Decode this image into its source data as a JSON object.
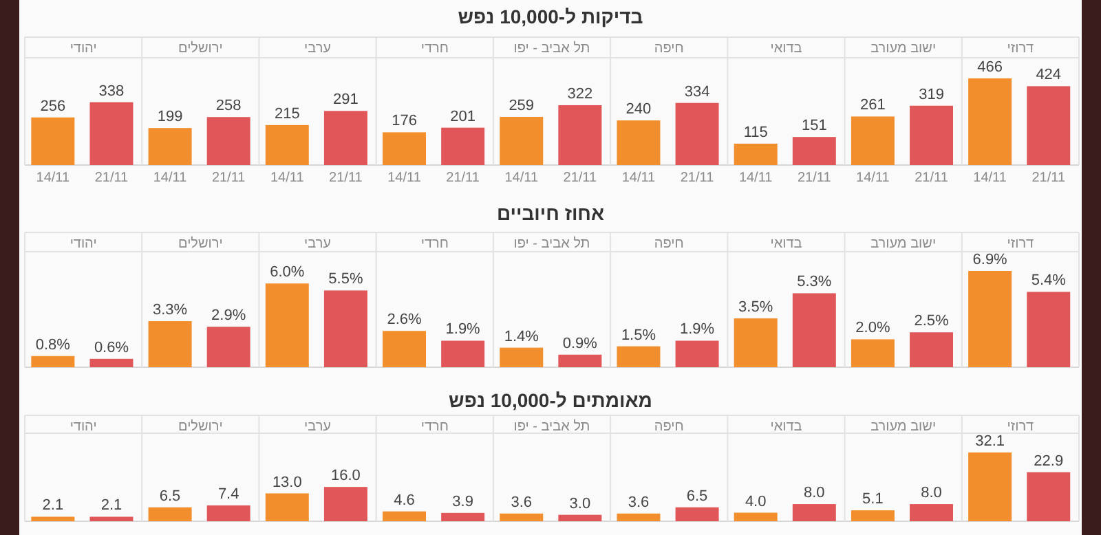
{
  "chart_data": [
    {
      "type": "bar",
      "title": "בדיקות ל-10,000 נפש",
      "categories": [
        "יהודי",
        "ירושלים",
        "ערבי",
        "חרדי",
        "תל אביב - יפו",
        "חיפה",
        "בדואי",
        "ישוב מעורב",
        "דרוזי"
      ],
      "data_labels": true,
      "series": [
        {
          "name": "14/11",
          "color": "#f28e2b",
          "values": [
            256,
            199,
            215,
            176,
            259,
            240,
            115,
            261,
            466
          ]
        },
        {
          "name": "21/11",
          "color": "#e15759",
          "values": [
            338,
            258,
            291,
            201,
            322,
            334,
            151,
            319,
            424
          ]
        }
      ]
    },
    {
      "type": "bar",
      "title": "אחוז חיוביים",
      "categories": [
        "יהודי",
        "ירושלים",
        "ערבי",
        "חרדי",
        "תל אביב - יפו",
        "חיפה",
        "בדואי",
        "ישוב מעורב",
        "דרוזי"
      ],
      "series": [
        {
          "color": "#f28e2b",
          "values": [
            0.8,
            3.3,
            6.0,
            2.6,
            1.4,
            1.5,
            3.5,
            2.0,
            6.9
          ],
          "value_labels": [
            "0.8%",
            "3.3%",
            "6.0%",
            "2.6%",
            "1.4%",
            "1.5%",
            "3.5%",
            "2.0%",
            "6.9%"
          ]
        },
        {
          "color": "#e15759",
          "values": [
            0.6,
            2.9,
            5.5,
            1.9,
            0.9,
            1.9,
            5.3,
            2.5,
            5.4
          ],
          "value_labels": [
            "0.6%",
            "2.9%",
            "5.5%",
            "1.9%",
            "0.9%",
            "1.9%",
            "5.3%",
            "2.5%",
            "5.4%"
          ]
        }
      ]
    },
    {
      "type": "bar",
      "title": "מאומתים ל-10,000 נפש",
      "categories": [
        "יהודי",
        "ירושלים",
        "ערבי",
        "חרדי",
        "תל אביב - יפו",
        "חיפה",
        "בדואי",
        "ישוב מעורב",
        "דרוזי"
      ],
      "series": [
        {
          "color": "#f28e2b",
          "values": [
            2.1,
            6.5,
            13.0,
            4.6,
            3.6,
            3.6,
            4.0,
            5.1,
            32.1
          ],
          "value_labels": [
            "2.1",
            "6.5",
            "13.0",
            "4.6",
            "3.6",
            "3.6",
            "4.0",
            "5.1",
            "32.1"
          ]
        },
        {
          "color": "#e15759",
          "values": [
            2.1,
            7.4,
            16.0,
            3.9,
            3.0,
            6.5,
            8.0,
            8.0,
            22.9
          ],
          "value_labels": [
            "2.1",
            "7.4",
            "16.0",
            "3.9",
            "3.0",
            "6.5",
            "8.0",
            "8.0",
            "22.9"
          ]
        }
      ]
    }
  ]
}
